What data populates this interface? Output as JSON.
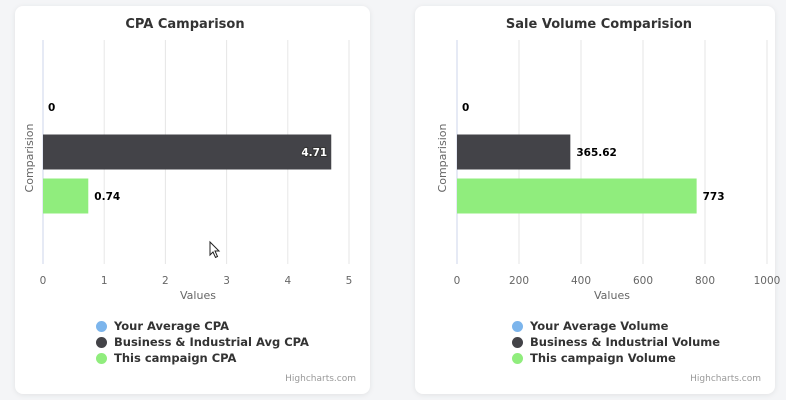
{
  "charts": [
    {
      "credits": "Highcharts.com",
      "legend": [
        {
          "label": "Your Average CPA",
          "color": "#7cb5ec"
        },
        {
          "label": "Business & Industrial Avg CPA",
          "color": "#434348"
        },
        {
          "label": "This campaign CPA",
          "color": "#90ed7d"
        }
      ]
    },
    {
      "credits": "Highcharts.com",
      "legend": [
        {
          "label": "Your Average Volume",
          "color": "#7cb5ec"
        },
        {
          "label": "Business & Industrial Volume",
          "color": "#434348"
        },
        {
          "label": "This campaign Volume",
          "color": "#90ed7d"
        }
      ]
    }
  ],
  "chart_data": [
    {
      "type": "bar",
      "title": "CPA Camparison",
      "xlabel": "Values",
      "ylabel": "Comparision",
      "xlim": [
        0,
        5
      ],
      "ticks": [
        0,
        1,
        2,
        3,
        4,
        5
      ],
      "tick_labels": [
        "0",
        "1",
        "2",
        "3",
        "4",
        "5"
      ],
      "grid": true,
      "legend_position": "bottom",
      "series": [
        {
          "name": "Your Average CPA",
          "value": 0,
          "label": "0",
          "color": "#7cb5ec",
          "label_inside": false
        },
        {
          "name": "Business & Industrial Avg CPA",
          "value": 4.71,
          "label": "4.71",
          "color": "#434348",
          "label_inside": true
        },
        {
          "name": "This campaign CPA",
          "value": 0.74,
          "label": "0.74",
          "color": "#90ed7d",
          "label_inside": false
        }
      ]
    },
    {
      "type": "bar",
      "title": "Sale Volume Comparision",
      "xlabel": "Values",
      "ylabel": "Comparision",
      "xlim": [
        0,
        1000
      ],
      "ticks": [
        0,
        200,
        400,
        600,
        800,
        1000
      ],
      "tick_labels": [
        "0",
        "200",
        "400",
        "600",
        "800",
        "1000"
      ],
      "grid": true,
      "legend_position": "bottom",
      "series": [
        {
          "name": "Your Average Volume",
          "value": 0,
          "label": "0",
          "color": "#7cb5ec",
          "label_inside": false
        },
        {
          "name": "Business & Industrial Volume",
          "value": 365.62,
          "label": "365.62",
          "color": "#434348",
          "label_inside": false
        },
        {
          "name": "This campaign Volume",
          "value": 773,
          "label": "773",
          "color": "#90ed7d",
          "label_inside": false
        }
      ]
    }
  ]
}
